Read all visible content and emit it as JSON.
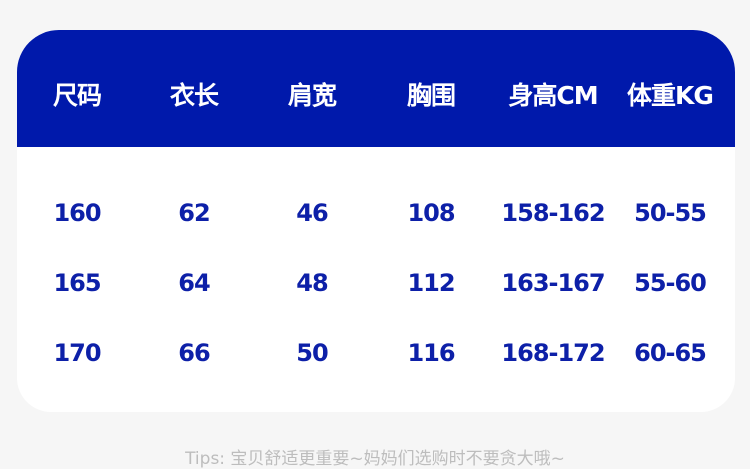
{
  "table": {
    "headers": [
      "尺码",
      "衣长",
      "肩宽",
      "胸围",
      "身高CM",
      "体重KG"
    ],
    "rows": [
      [
        "160",
        "62",
        "46",
        "108",
        "158-162",
        "50-55"
      ],
      [
        "165",
        "64",
        "48",
        "112",
        "163-167",
        "55-60"
      ],
      [
        "170",
        "66",
        "50",
        "116",
        "168-172",
        "60-65"
      ]
    ]
  },
  "tips": "Tips: 宝贝舒适更重要~妈妈们选购时不要贪大哦~",
  "colors": {
    "header_bg": "#0019ab",
    "value_text": "#0d20a8",
    "tips_text": "#bdbdbd"
  }
}
